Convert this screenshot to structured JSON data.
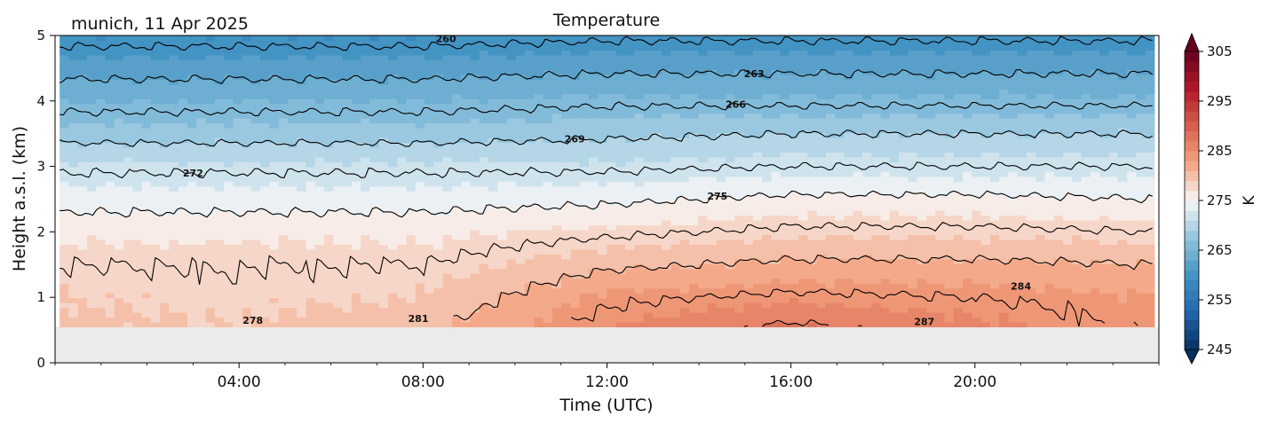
{
  "location_date": "munich, 11 Apr 2025",
  "chart_data": {
    "type": "heatmap",
    "title": "Temperature",
    "xlabel": "Time (UTC)",
    "ylabel": "Height a.s.l. (km)",
    "x_units": "hours UTC",
    "xlim": [
      0,
      24
    ],
    "ylim": [
      0,
      5
    ],
    "x_ticks": [
      {
        "value": 4,
        "label": "04:00"
      },
      {
        "value": 8,
        "label": "08:00"
      },
      {
        "value": 12,
        "label": "12:00"
      },
      {
        "value": 16,
        "label": "16:00"
      },
      {
        "value": 20,
        "label": "20:00"
      }
    ],
    "y_ticks": [
      {
        "value": 0,
        "label": "0"
      },
      {
        "value": 1,
        "label": "1"
      },
      {
        "value": 2,
        "label": "2"
      },
      {
        "value": 3,
        "label": "3"
      },
      {
        "value": 4,
        "label": "4"
      },
      {
        "value": 5,
        "label": "5"
      }
    ],
    "no_data_below_km": 0.55,
    "colormap": "RdBu_r",
    "colorbar": {
      "label": "K",
      "vmin": 245,
      "vmax": 305,
      "extend": "both",
      "ticks": [
        245,
        255,
        265,
        275,
        285,
        295,
        305
      ],
      "tick_labels": [
        "245",
        "255",
        "265",
        "275",
        "285",
        "295",
        "305"
      ]
    },
    "contour_levels": [
      260,
      263,
      266,
      269,
      272,
      275,
      278,
      281,
      284,
      287
    ],
    "contour_labels": [
      {
        "text": "260",
        "x": 8.5,
        "y": 4.95
      },
      {
        "text": "263",
        "x": 15.2,
        "y": 4.42
      },
      {
        "text": "266",
        "x": 14.8,
        "y": 3.95
      },
      {
        "text": "269",
        "x": 11.3,
        "y": 3.42
      },
      {
        "text": "272",
        "x": 3.0,
        "y": 2.9
      },
      {
        "text": "275",
        "x": 14.4,
        "y": 2.55
      },
      {
        "text": "278",
        "x": 4.3,
        "y": 0.65
      },
      {
        "text": "281",
        "x": 7.9,
        "y": 0.68
      },
      {
        "text": "284",
        "x": 21.0,
        "y": 1.17
      },
      {
        "text": "287",
        "x": 18.9,
        "y": 0.63
      }
    ],
    "temperature_profile": {
      "description_levels_km": [
        0.55,
        1.0,
        1.5,
        2.0,
        2.5,
        3.0,
        3.5,
        4.0,
        4.5,
        5.0
      ],
      "hours": [
        0,
        4,
        8,
        12,
        16,
        20,
        24
      ],
      "values_K": [
        [
          279.5,
          279.0,
          280.5,
          285.0,
          287.5,
          285.5,
          283.5
        ],
        [
          279.0,
          278.5,
          279.0,
          283.5,
          284.5,
          284.0,
          283.0
        ],
        [
          278.0,
          278.0,
          278.0,
          280.5,
          281.5,
          281.5,
          281.0
        ],
        [
          276.5,
          276.5,
          276.5,
          277.5,
          278.5,
          278.5,
          278.0
        ],
        [
          274.0,
          274.0,
          274.0,
          274.5,
          275.5,
          275.5,
          275.0
        ],
        [
          271.5,
          271.5,
          271.5,
          271.5,
          272.0,
          272.0,
          272.0
        ],
        [
          268.0,
          268.0,
          268.0,
          268.5,
          269.0,
          269.0,
          269.0
        ],
        [
          265.0,
          265.0,
          265.0,
          265.5,
          265.5,
          265.5,
          265.5
        ],
        [
          262.0,
          262.0,
          262.0,
          262.5,
          262.5,
          262.5,
          262.5
        ],
        [
          259.0,
          259.0,
          259.0,
          259.5,
          259.5,
          259.5,
          259.5
        ]
      ]
    }
  }
}
